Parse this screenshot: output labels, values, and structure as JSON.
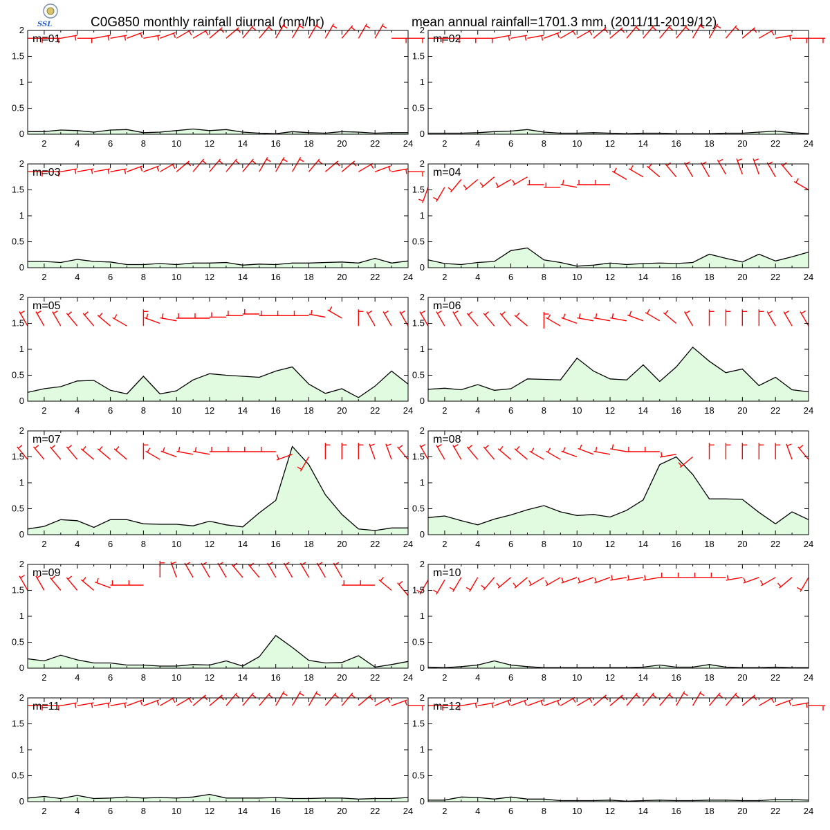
{
  "header": {
    "title_left": "C0G850 monthly rainfall diurnal (mm/hr)",
    "title_right": "mean annual rainfall=1701.3 mm, (2011/11-2019/12)"
  },
  "logo": {
    "icon": "institution-seal-logo",
    "text": "SSL"
  },
  "chart_data": {
    "type": "area",
    "x_ticks": [
      2,
      4,
      6,
      8,
      10,
      12,
      14,
      16,
      18,
      20,
      22,
      24
    ],
    "y_ticks": [
      0,
      0.5,
      1,
      1.5,
      2
    ],
    "y_tick_labels": [
      "0",
      "0.5",
      "1",
      "1.5",
      "2"
    ],
    "xlim": [
      1,
      24
    ],
    "ylim": [
      0,
      2
    ],
    "grid": false,
    "colors": {
      "fill": "#e1fbe1",
      "line": "#000000",
      "wind_barb": "#ff0000"
    },
    "panels": [
      {
        "label": "m=01",
        "rain": [
          0.05,
          0.05,
          0.08,
          0.07,
          0.04,
          0.08,
          0.09,
          0.03,
          0.04,
          0.07,
          0.1,
          0.07,
          0.09,
          0.04,
          0.02,
          0.01,
          0.05,
          0.03,
          0.02,
          0.05,
          0.04,
          0.02,
          0.03,
          0.03
        ],
        "wind_y": [
          1.85,
          1.85,
          1.85,
          1.85,
          1.85,
          1.85,
          1.85,
          1.85,
          1.85,
          1.85,
          1.85,
          1.85,
          1.85,
          1.85,
          1.85,
          1.85,
          1.85,
          1.85,
          1.85,
          1.85,
          1.85,
          1.85,
          1.85,
          1.85
        ],
        "wind_dir": [
          90,
          90,
          80,
          90,
          80,
          80,
          70,
          80,
          70,
          60,
          60,
          50,
          50,
          40,
          40,
          30,
          30,
          30,
          30,
          40,
          30,
          30,
          90,
          90
        ]
      },
      {
        "label": "m=02",
        "rain": [
          0.02,
          0.02,
          0.02,
          0.03,
          0.05,
          0.06,
          0.09,
          0.04,
          0.02,
          0.02,
          0.03,
          0.02,
          0.01,
          0.02,
          0.02,
          0.01,
          0.01,
          0.01,
          0.02,
          0.02,
          0.04,
          0.06,
          0.03,
          0.01
        ],
        "wind_y": [
          1.85,
          1.85,
          1.85,
          1.85,
          1.85,
          1.85,
          1.85,
          1.85,
          1.85,
          1.85,
          1.85,
          1.85,
          1.85,
          1.85,
          1.85,
          1.85,
          1.85,
          1.85,
          1.85,
          1.85,
          1.85,
          1.85,
          1.85,
          1.85
        ],
        "wind_dir": [
          90,
          90,
          90,
          90,
          80,
          80,
          80,
          70,
          60,
          60,
          50,
          50,
          40,
          40,
          40,
          40,
          30,
          30,
          40,
          50,
          60,
          80,
          90,
          90
        ]
      },
      {
        "label": "m=03",
        "rain": [
          0.12,
          0.12,
          0.1,
          0.16,
          0.12,
          0.11,
          0.06,
          0.06,
          0.08,
          0.06,
          0.09,
          0.09,
          0.1,
          0.05,
          0.07,
          0.06,
          0.09,
          0.09,
          0.1,
          0.11,
          0.09,
          0.18,
          0.09,
          0.13
        ],
        "wind_y": [
          1.85,
          1.85,
          1.85,
          1.85,
          1.85,
          1.85,
          1.85,
          1.85,
          1.85,
          1.85,
          1.85,
          1.85,
          1.85,
          1.85,
          1.85,
          1.85,
          1.85,
          1.85,
          1.85,
          1.85,
          1.85,
          1.85,
          1.85,
          1.85
        ],
        "wind_dir": [
          90,
          90,
          80,
          80,
          80,
          80,
          70,
          70,
          60,
          50,
          40,
          40,
          40,
          40,
          30,
          30,
          30,
          40,
          50,
          50,
          60,
          70,
          80,
          90
        ]
      },
      {
        "label": "m=04",
        "rain": [
          0.15,
          0.08,
          0.06,
          0.1,
          0.12,
          0.33,
          0.38,
          0.15,
          0.1,
          0.03,
          0.05,
          0.09,
          0.06,
          0.08,
          0.09,
          0.08,
          0.1,
          0.26,
          0.18,
          0.11,
          0.26,
          0.13,
          0.21,
          0.3
        ],
        "wind_y": [
          1.55,
          1.55,
          1.7,
          1.7,
          1.75,
          1.7,
          1.75,
          1.6,
          1.55,
          1.55,
          1.6,
          1.6,
          1.7,
          1.75,
          1.75,
          1.75,
          1.75,
          1.75,
          1.8,
          1.8,
          1.8,
          1.75,
          1.75,
          1.5
        ],
        "wind_dir": [
          200,
          210,
          220,
          230,
          230,
          240,
          240,
          270,
          270,
          280,
          270,
          270,
          300,
          300,
          310,
          320,
          330,
          330,
          330,
          340,
          340,
          330,
          320,
          300
        ]
      },
      {
        "label": "m=05",
        "rain": [
          0.17,
          0.24,
          0.28,
          0.39,
          0.4,
          0.21,
          0.14,
          0.48,
          0.14,
          0.2,
          0.41,
          0.53,
          0.5,
          0.48,
          0.46,
          0.58,
          0.66,
          0.33,
          0.15,
          0.24,
          0.07,
          0.29,
          0.58,
          0.33
        ],
        "wind_y": [
          1.45,
          1.45,
          1.45,
          1.45,
          1.45,
          1.45,
          1.45,
          1.45,
          1.5,
          1.55,
          1.6,
          1.6,
          1.62,
          1.65,
          1.68,
          1.65,
          1.65,
          1.65,
          1.62,
          1.6,
          1.45,
          1.45,
          1.45,
          1.45
        ],
        "wind_dir": [
          330,
          330,
          330,
          320,
          320,
          310,
          300,
          0,
          290,
          280,
          270,
          270,
          270,
          270,
          270,
          270,
          270,
          270,
          280,
          300,
          0,
          330,
          330,
          330
        ]
      },
      {
        "label": "m=06",
        "rain": [
          0.23,
          0.25,
          0.22,
          0.32,
          0.21,
          0.24,
          0.43,
          0.42,
          0.41,
          0.83,
          0.58,
          0.43,
          0.41,
          0.7,
          0.38,
          0.66,
          1.04,
          0.77,
          0.55,
          0.62,
          0.3,
          0.46,
          0.22,
          0.18
        ],
        "wind_y": [
          1.45,
          1.45,
          1.45,
          1.45,
          1.45,
          1.45,
          1.45,
          1.4,
          1.45,
          1.5,
          1.55,
          1.55,
          1.55,
          1.55,
          1.55,
          1.5,
          1.45,
          1.45,
          1.45,
          1.45,
          1.45,
          1.45,
          1.45,
          1.45
        ],
        "wind_dir": [
          330,
          330,
          330,
          320,
          320,
          320,
          310,
          0,
          300,
          290,
          280,
          280,
          280,
          290,
          300,
          310,
          330,
          0,
          0,
          0,
          0,
          330,
          330,
          330
        ]
      },
      {
        "label": "m=07",
        "rain": [
          0.11,
          0.16,
          0.29,
          0.27,
          0.14,
          0.29,
          0.29,
          0.21,
          0.2,
          0.2,
          0.17,
          0.26,
          0.19,
          0.15,
          0.42,
          0.66,
          1.7,
          1.35,
          0.77,
          0.39,
          0.11,
          0.08,
          0.13,
          0.13
        ],
        "wind_y": [
          1.45,
          1.45,
          1.45,
          1.45,
          1.45,
          1.45,
          1.45,
          1.45,
          1.45,
          1.5,
          1.55,
          1.55,
          1.6,
          1.6,
          1.6,
          1.6,
          1.55,
          1.5,
          1.45,
          1.45,
          1.45,
          1.45,
          1.45,
          1.45
        ],
        "wind_dir": [
          320,
          320,
          320,
          320,
          310,
          310,
          310,
          0,
          300,
          290,
          280,
          280,
          270,
          270,
          270,
          270,
          250,
          210,
          0,
          0,
          0,
          340,
          340,
          320
        ]
      },
      {
        "label": "m=08",
        "rain": [
          0.33,
          0.36,
          0.27,
          0.19,
          0.3,
          0.38,
          0.48,
          0.56,
          0.44,
          0.37,
          0.39,
          0.34,
          0.47,
          0.67,
          1.35,
          1.5,
          1.16,
          0.69,
          0.69,
          0.68,
          0.43,
          0.21,
          0.44,
          0.29
        ],
        "wind_y": [
          1.45,
          1.45,
          1.45,
          1.45,
          1.45,
          1.45,
          1.45,
          1.45,
          1.45,
          1.5,
          1.55,
          1.55,
          1.6,
          1.6,
          1.6,
          1.55,
          1.5,
          1.45,
          1.45,
          1.45,
          1.45,
          1.45,
          1.45,
          1.45
        ],
        "wind_dir": [
          330,
          330,
          330,
          320,
          320,
          310,
          310,
          300,
          300,
          290,
          290,
          280,
          280,
          270,
          270,
          260,
          230,
          0,
          0,
          0,
          0,
          0,
          340,
          320
        ]
      },
      {
        "label": "m=09",
        "rain": [
          0.18,
          0.14,
          0.25,
          0.16,
          0.1,
          0.1,
          0.06,
          0.06,
          0.04,
          0.04,
          0.07,
          0.06,
          0.14,
          0.04,
          0.22,
          0.63,
          0.4,
          0.15,
          0.1,
          0.11,
          0.24,
          0.02,
          0.07,
          0.13
        ],
        "wind_y": [
          1.5,
          1.5,
          1.5,
          1.5,
          1.5,
          1.55,
          1.6,
          1.6,
          1.75,
          1.75,
          1.75,
          1.75,
          1.75,
          1.75,
          1.75,
          1.75,
          1.75,
          1.75,
          1.75,
          1.75,
          1.6,
          1.6,
          1.5,
          1.4
        ],
        "wind_dir": [
          330,
          330,
          320,
          320,
          310,
          290,
          270,
          270,
          0,
          340,
          330,
          330,
          330,
          320,
          320,
          330,
          330,
          330,
          330,
          330,
          270,
          270,
          310,
          320
        ]
      },
      {
        "label": "m=10",
        "rain": [
          0.02,
          0.01,
          0.03,
          0.06,
          0.14,
          0.06,
          0.03,
          0.01,
          0.01,
          0.01,
          0.01,
          0.01,
          0.01,
          0.02,
          0.06,
          0.02,
          0.02,
          0.07,
          0.02,
          0.01,
          0.01,
          0.02,
          0.01,
          0.01
        ],
        "wind_y": [
          1.7,
          1.7,
          1.75,
          1.75,
          1.75,
          1.75,
          1.75,
          1.75,
          1.75,
          1.75,
          1.75,
          1.75,
          1.75,
          1.75,
          1.75,
          1.75,
          1.75,
          1.75,
          1.75,
          1.75,
          1.75,
          1.75,
          1.75,
          1.75
        ],
        "wind_dir": [
          210,
          210,
          210,
          210,
          220,
          230,
          230,
          240,
          240,
          250,
          250,
          250,
          260,
          260,
          260,
          270,
          270,
          270,
          270,
          260,
          250,
          240,
          230,
          210
        ]
      },
      {
        "label": "m=11",
        "rain": [
          0.07,
          0.1,
          0.06,
          0.12,
          0.06,
          0.07,
          0.09,
          0.07,
          0.08,
          0.07,
          0.09,
          0.14,
          0.07,
          0.07,
          0.07,
          0.08,
          0.06,
          0.06,
          0.07,
          0.07,
          0.05,
          0.06,
          0.06,
          0.08
        ],
        "wind_y": [
          1.85,
          1.85,
          1.85,
          1.85,
          1.85,
          1.85,
          1.85,
          1.85,
          1.85,
          1.85,
          1.85,
          1.85,
          1.85,
          1.85,
          1.85,
          1.85,
          1.85,
          1.85,
          1.85,
          1.85,
          1.85,
          1.85,
          1.85,
          1.85
        ],
        "wind_dir": [
          90,
          90,
          80,
          80,
          80,
          80,
          70,
          70,
          60,
          60,
          50,
          50,
          40,
          40,
          40,
          30,
          30,
          30,
          40,
          40,
          50,
          60,
          70,
          90
        ]
      },
      {
        "label": "m=12",
        "rain": [
          0.03,
          0.03,
          0.09,
          0.08,
          0.05,
          0.09,
          0.05,
          0.05,
          0.02,
          0.02,
          0.02,
          0.03,
          0.01,
          0.02,
          0.03,
          0.02,
          0.02,
          0.03,
          0.03,
          0.02,
          0.02,
          0.04,
          0.04,
          0.03
        ],
        "wind_y": [
          1.85,
          1.85,
          1.85,
          1.85,
          1.85,
          1.85,
          1.85,
          1.85,
          1.85,
          1.85,
          1.85,
          1.85,
          1.85,
          1.85,
          1.85,
          1.85,
          1.85,
          1.85,
          1.85,
          1.85,
          1.85,
          1.85,
          1.85,
          1.85
        ],
        "wind_dir": [
          90,
          90,
          80,
          80,
          70,
          70,
          70,
          70,
          60,
          60,
          50,
          50,
          40,
          40,
          40,
          30,
          30,
          40,
          40,
          50,
          60,
          70,
          80,
          90
        ]
      }
    ]
  }
}
